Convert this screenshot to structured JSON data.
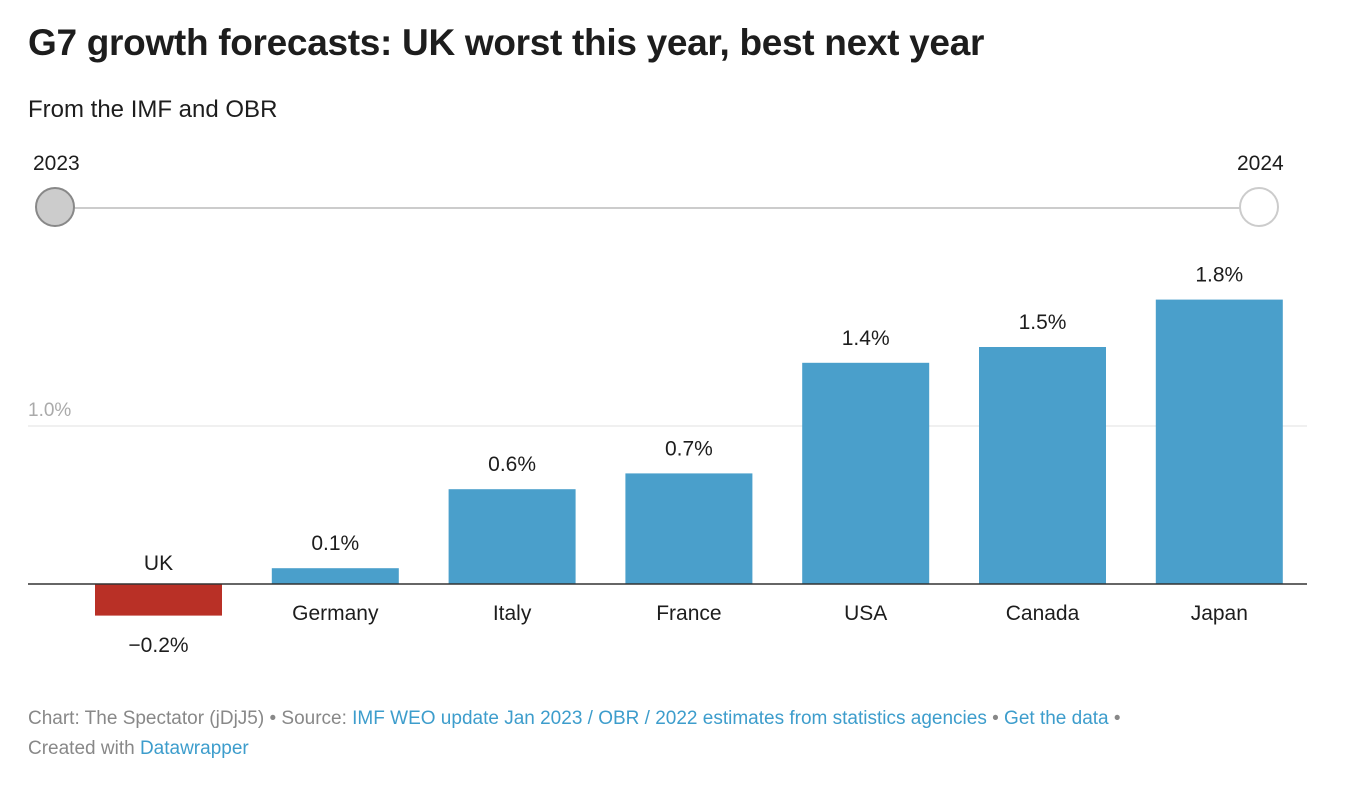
{
  "header": {
    "title": "G7 growth forecasts: UK worst this year, best next year",
    "subtitle": "From the IMF and OBR"
  },
  "slider": {
    "options": [
      "2023",
      "2024"
    ],
    "selected": "2023"
  },
  "chart_data": {
    "type": "bar",
    "categories": [
      "UK",
      "Germany",
      "Italy",
      "France",
      "USA",
      "Canada",
      "Japan"
    ],
    "values": [
      -0.2,
      0.1,
      0.6,
      0.7,
      1.4,
      1.5,
      1.8
    ],
    "labels": [
      "−0.2%",
      "0.1%",
      "0.6%",
      "0.7%",
      "1.4%",
      "1.5%",
      "1.8%"
    ],
    "highlight": "UK",
    "colors": {
      "default": "#4a9fcb",
      "highlight": "#b93026"
    },
    "yticks": [
      {
        "value": 1.0,
        "label": "1.0%"
      }
    ],
    "ylim": [
      -0.2,
      1.8
    ],
    "title": "G7 growth forecasts: UK worst this year, best next year",
    "xlabel": "",
    "ylabel": ""
  },
  "footer": {
    "chart_prefix": "Chart: The Spectator (jDjJ5) • Source: ",
    "source": "IMF WEO update Jan 2023 / OBR / 2022 estimates from statistics agencies",
    "sep": " • ",
    "get_data": "Get the data",
    "sep2": " •",
    "created": "Created with ",
    "datawrapper": "Datawrapper"
  }
}
